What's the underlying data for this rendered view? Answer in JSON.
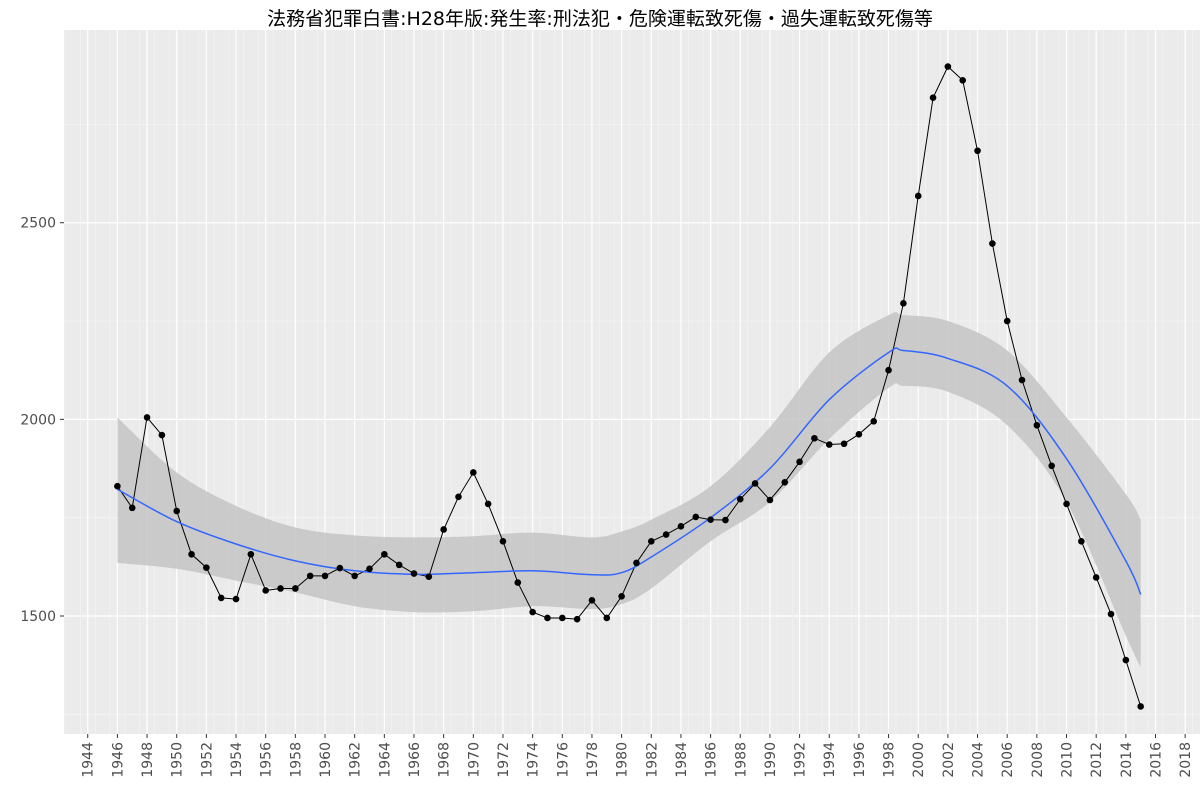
{
  "chart_data": {
    "type": "line",
    "title": "法務省犯罪白書:H28年版:発生率:刑法犯・危険運転致死傷・過失運転致死傷等",
    "xlabel": "",
    "ylabel": "",
    "xlim": [
      1942.4,
      2019.0
    ],
    "ylim": [
      1200,
      2990
    ],
    "x_ticks": [
      1944,
      1946,
      1948,
      1950,
      1952,
      1954,
      1956,
      1958,
      1960,
      1962,
      1964,
      1966,
      1968,
      1970,
      1972,
      1974,
      1976,
      1978,
      1980,
      1982,
      1984,
      1986,
      1988,
      1990,
      1992,
      1994,
      1996,
      1998,
      2000,
      2002,
      2004,
      2006,
      2008,
      2010,
      2012,
      2014,
      2016,
      2018
    ],
    "y_ticks": [
      1500,
      2000,
      2500
    ],
    "grid": true,
    "legend": "none",
    "colors": {
      "panel": "#ebebeb",
      "grid": "#ffffff",
      "points": "#000000",
      "line": "#000000",
      "smooth": "#3366ff",
      "band": "#c4c4c4"
    },
    "series": [
      {
        "x": [
          1946,
          1947,
          1948,
          1949,
          1950,
          1951,
          1952,
          1953,
          1954,
          1955,
          1956,
          1957,
          1958,
          1959,
          1960,
          1961,
          1962,
          1963,
          1964,
          1965,
          1966,
          1967,
          1968,
          1969,
          1970,
          1971,
          1972,
          1973,
          1974,
          1975,
          1976,
          1977,
          1978,
          1979,
          1980,
          1981,
          1982,
          1983,
          1984,
          1985,
          1986,
          1987,
          1988,
          1989,
          1990,
          1991,
          1992,
          1993,
          1994,
          1995,
          1996,
          1997,
          1998,
          1999,
          2000,
          2001,
          2002,
          2003,
          2004,
          2005,
          2006,
          2007,
          2008,
          2009,
          2010,
          2011,
          2012,
          2013,
          2014,
          2015
        ],
        "values": [
          1830,
          1775,
          2005,
          1960,
          1767,
          1657,
          1623,
          1546,
          1543,
          1657,
          1565,
          1570,
          1570,
          1602,
          1602,
          1622,
          1602,
          1620,
          1657,
          1630,
          1608,
          1600,
          1720,
          1803,
          1865,
          1785,
          1690,
          1585,
          1510,
          1495,
          1495,
          1492,
          1540,
          1495,
          1550,
          1635,
          1690,
          1707,
          1728,
          1752,
          1745,
          1744,
          1797,
          1837,
          1795,
          1840,
          1892,
          1952,
          1936,
          1938,
          1962,
          1995,
          2125,
          2295,
          2568,
          2818,
          2897,
          2862,
          2683,
          2447,
          2250,
          2100,
          1985,
          1882,
          1785,
          1690,
          1598,
          1505,
          1388,
          1270
        ]
      },
      {
        "x": [
          1946,
          1950,
          1954,
          1958,
          1962,
          1966,
          1970,
          1974,
          1978,
          1980,
          1982,
          1986,
          1990,
          1994,
          1998,
          1999,
          2002,
          2006,
          2010,
          2014,
          2015
        ],
        "values": [
          1822,
          1740,
          1683,
          1640,
          1615,
          1606,
          1610,
          1615,
          1605,
          1610,
          1650,
          1750,
          1875,
          2050,
          2170,
          2175,
          2155,
          2085,
          1900,
          1640,
          1555
        ]
      }
    ],
    "confidence_band": {
      "x": [
        1946,
        1950,
        1954,
        1958,
        1962,
        1966,
        1970,
        1974,
        1978,
        1980,
        1982,
        1986,
        1990,
        1994,
        1998,
        1999,
        2002,
        2006,
        2010,
        2014,
        2015
      ],
      "lower": [
        1635,
        1620,
        1590,
        1560,
        1525,
        1510,
        1512,
        1525,
        1518,
        1530,
        1570,
        1690,
        1790,
        1950,
        2080,
        2085,
        2070,
        1985,
        1790,
        1450,
        1370
      ],
      "upper": [
        2005,
        1865,
        1780,
        1725,
        1705,
        1700,
        1703,
        1712,
        1700,
        1715,
        1745,
        1830,
        1980,
        2170,
        2265,
        2265,
        2250,
        2175,
        2005,
        1810,
        1745
      ]
    }
  }
}
